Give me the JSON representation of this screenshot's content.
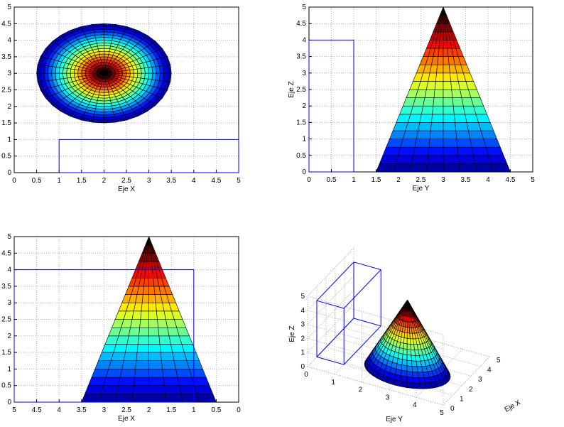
{
  "colors": {
    "outline": "#0000ff",
    "grid": "#b0b0b0",
    "frame": "#000000",
    "colormap": [
      "#00008f",
      "#0000ff",
      "#0080ff",
      "#00ffff",
      "#80ff80",
      "#ffff00",
      "#ff8000",
      "#ff0000",
      "#800000",
      "#000000"
    ]
  },
  "chart_data": [
    {
      "type": "surface",
      "id": "top-view",
      "view": "top (X-Y)",
      "xlabel": "Eje X",
      "ylabel": "",
      "xlim": [
        0,
        5
      ],
      "ylim": [
        0,
        5
      ],
      "xticks": [
        "0",
        "0.5",
        "1",
        "1.5",
        "2",
        "2.5",
        "3",
        "3.5",
        "4",
        "4.5",
        "5"
      ],
      "yticks": [
        "0",
        "0.5",
        "1",
        "1.5",
        "2",
        "2.5",
        "3",
        "3.5",
        "4",
        "4.5",
        "5"
      ],
      "cone": {
        "center_x": 2,
        "center_y": 3,
        "base_radius": 1.5,
        "base_z": 0,
        "apex_z": 5
      },
      "box_outline": {
        "x": [
          1,
          5
        ],
        "y": [
          0,
          1
        ]
      }
    },
    {
      "type": "surface",
      "id": "side-view-y",
      "view": "side (Y-Z)",
      "xlabel": "Eje Y",
      "ylabel": "Eje Z",
      "xlim": [
        0,
        5
      ],
      "ylim": [
        0,
        5
      ],
      "xticks": [
        "0",
        "0.5",
        "1",
        "1.5",
        "2",
        "2.5",
        "3",
        "3.5",
        "4",
        "4.5",
        "5"
      ],
      "yticks": [
        "0",
        "0.5",
        "1",
        "1.5",
        "2",
        "2.5",
        "3",
        "3.5",
        "4",
        "4.5",
        "5"
      ],
      "cone": {
        "center_y": 3,
        "base_half_width": 1.5,
        "base_z": 0,
        "apex_z": 5
      },
      "box_outline": {
        "y": [
          0,
          1
        ],
        "z": [
          0,
          4
        ]
      }
    },
    {
      "type": "surface",
      "id": "side-view-x",
      "view": "side (X-Z), X reversed",
      "xlabel": "Eje X",
      "ylabel": "",
      "xlim": [
        5,
        0
      ],
      "ylim": [
        0,
        5
      ],
      "xticks": [
        "5",
        "4.5",
        "4",
        "3.5",
        "3",
        "2.5",
        "2",
        "1.5",
        "1",
        "0.5",
        "0"
      ],
      "yticks": [
        "0",
        "0.5",
        "1",
        "1.5",
        "2",
        "2.5",
        "3",
        "3.5",
        "4",
        "4.5",
        "5"
      ],
      "cone": {
        "center_x": 2,
        "base_half_width": 1.5,
        "base_z": 0,
        "apex_z": 5
      },
      "box_outline": {
        "x": [
          1,
          5
        ],
        "z": [
          0,
          4
        ]
      }
    },
    {
      "type": "surface3d",
      "id": "iso-view",
      "view": "3D",
      "xlabel": "Eje X",
      "ylabel": "Eje Y",
      "zlabel": "Eje Z",
      "xticks": [
        "0",
        "1",
        "2",
        "3",
        "4",
        "5"
      ],
      "yticks": [
        "0",
        "1",
        "2",
        "3",
        "4",
        "5"
      ],
      "zticks": [
        "0",
        "1",
        "2",
        "3",
        "4",
        "5"
      ],
      "cone": {
        "center_x": 2,
        "center_y": 3,
        "base_radius": 1.5,
        "base_z": 0,
        "apex_z": 5
      },
      "box_outline": {
        "x": [
          1,
          5
        ],
        "y": [
          0,
          1
        ],
        "z": [
          0,
          4
        ]
      }
    }
  ]
}
